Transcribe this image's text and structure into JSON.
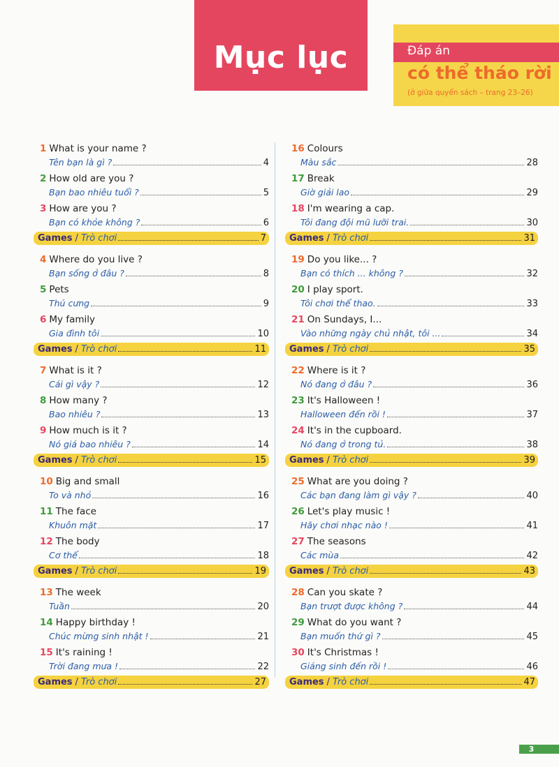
{
  "header": {
    "title": "Mục lục",
    "answer_label": "Đáp án",
    "answer_detachable": "có thể tháo rời",
    "answer_location": "(ở giữa quyển sách – trang 23–26)"
  },
  "colors": {
    "title_bg": "#e5465f",
    "answer_bg": "#f5d64a",
    "answer_text": "#ee6a2b",
    "games_bg": "#f5d23f",
    "games_text": "#3b2a78",
    "vi_text": "#2b5da8",
    "num_cycle": [
      "#ee6a2b",
      "#3f9b3a",
      "#e5465f"
    ],
    "page_badge": "#4aa04a"
  },
  "games_label": {
    "en": "Games",
    "sep": "/",
    "vi": "Trò chơi"
  },
  "left_column": [
    {
      "num": "1",
      "en": "What is your name ?",
      "vi": "Tên bạn là gì ?",
      "page": "4"
    },
    {
      "num": "2",
      "en": "How old are you ?",
      "vi": "Bạn bao nhiêu tuổi ?",
      "page": "5"
    },
    {
      "num": "3",
      "en": "How are you ?",
      "vi": "Bạn có khỏe không ?",
      "page": "6"
    },
    {
      "games": true,
      "page": "7"
    },
    {
      "num": "4",
      "en": "Where do you live ?",
      "vi": "Bạn sống ở đâu ?",
      "page": "8"
    },
    {
      "num": "5",
      "en": "Pets",
      "vi": "Thú cưng",
      "page": "9"
    },
    {
      "num": "6",
      "en": "My family",
      "vi": "Gia đình tôi",
      "page": "10"
    },
    {
      "games": true,
      "page": "11"
    },
    {
      "num": "7",
      "en": "What is it ?",
      "vi": "Cái gì vậy ?",
      "page": "12"
    },
    {
      "num": "8",
      "en": "How many ?",
      "vi": "Bao nhiêu ?",
      "page": "13"
    },
    {
      "num": "9",
      "en": "How much is it ?",
      "vi": "Nó giá bao nhiêu ?",
      "page": "14"
    },
    {
      "games": true,
      "page": "15"
    },
    {
      "num": "10",
      "en": "Big and small",
      "vi": "To và nhỏ",
      "page": "16"
    },
    {
      "num": "11",
      "en": "The face",
      "vi": "Khuôn mặt",
      "page": "17"
    },
    {
      "num": "12",
      "en": "The body",
      "vi": "Cơ thể",
      "page": "18"
    },
    {
      "games": true,
      "page": "19"
    },
    {
      "num": "13",
      "en": "The week",
      "vi": "Tuần",
      "page": "20"
    },
    {
      "num": "14",
      "en": "Happy birthday !",
      "vi": "Chúc mừng sinh nhật !",
      "page": "21"
    },
    {
      "num": "15",
      "en": "It's raining !",
      "vi": "Trời đang mưa !",
      "page": "22"
    },
    {
      "games": true,
      "page": "27"
    }
  ],
  "right_column": [
    {
      "num": "16",
      "en": "Colours",
      "vi": "Màu sắc",
      "page": "28"
    },
    {
      "num": "17",
      "en": "Break",
      "vi": "Giờ giải lao",
      "page": "29"
    },
    {
      "num": "18",
      "en": "I'm wearing a cap.",
      "vi": "Tôi đang đội mũ lưỡi trai.",
      "page": "30"
    },
    {
      "games": true,
      "page": "31"
    },
    {
      "num": "19",
      "en": "Do you like... ?",
      "vi": "Bạn có thích ... không ?",
      "page": "32"
    },
    {
      "num": "20",
      "en": "I play sport.",
      "vi": "Tôi chơi thể thao.",
      "page": "33"
    },
    {
      "num": "21",
      "en": "On Sundays, I...",
      "vi": "Vào những ngày chủ nhật, tôi ...",
      "page": "34"
    },
    {
      "games": true,
      "page": "35"
    },
    {
      "num": "22",
      "en": "Where is it ?",
      "vi": "Nó đang ở đâu ?",
      "page": "36"
    },
    {
      "num": "23",
      "en": "It's Halloween !",
      "vi": "Halloween đến rồi !",
      "page": "37"
    },
    {
      "num": "24",
      "en": "It's in the cupboard.",
      "vi": "Nó đang ở trong tủ.",
      "page": "38"
    },
    {
      "games": true,
      "page": "39"
    },
    {
      "num": "25",
      "en": "What are you doing ?",
      "vi": "Các bạn đang làm gì vậy ?",
      "page": "40"
    },
    {
      "num": "26",
      "en": "Let's play music !",
      "vi": "Hãy chơi nhạc nào !",
      "page": "41"
    },
    {
      "num": "27",
      "en": "The seasons",
      "vi": "Các mùa",
      "page": "42"
    },
    {
      "games": true,
      "page": "43"
    },
    {
      "num": "28",
      "en": "Can you skate ?",
      "vi": "Bạn trượt được không ?",
      "page": "44"
    },
    {
      "num": "29",
      "en": "What do you want ?",
      "vi": "Bạn muốn thứ gì ?",
      "page": "45"
    },
    {
      "num": "30",
      "en": "It's Christmas !",
      "vi": "Giáng sinh đến rồi !",
      "page": "46"
    },
    {
      "games": true,
      "page": "47"
    }
  ],
  "footer": {
    "page_number": "3"
  }
}
